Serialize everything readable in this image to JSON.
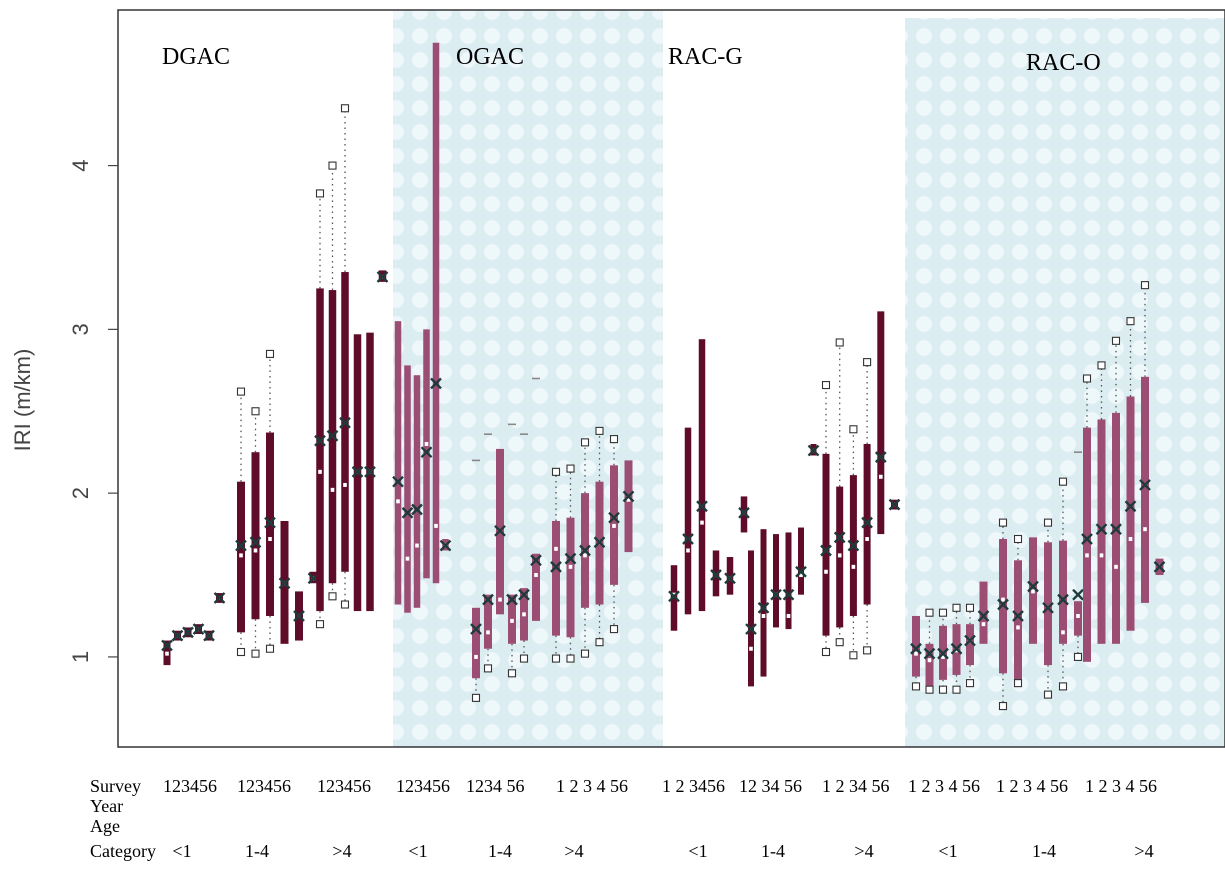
{
  "chart_data": {
    "type": "box",
    "ylabel": "IRI (m/km)",
    "y_ticks": [
      1,
      2,
      3,
      4
    ],
    "ylim": [
      0.45,
      4.95
    ],
    "groups": [
      {
        "name": "DGAC",
        "shaded": false
      },
      {
        "name": "OGAC",
        "shaded": true
      },
      {
        "name": "RAC-G",
        "shaded": false
      },
      {
        "name": "RAC-O",
        "shaded": true
      }
    ],
    "colors": {
      "dark": "#5e0c2a",
      "light": "#9b4d74",
      "shade": "#dcedf2",
      "mean_mark": "#1f3a3a"
    },
    "row_labels": {
      "survey": "Survey",
      "year": "Year",
      "age": "Age",
      "category": "Category"
    },
    "survey_labels": [
      "123456",
      "123456",
      "123456",
      "123456",
      "1234 56",
      "1 2 3 4 56",
      "1 2 3456",
      "12 34 56",
      "1 2 34 56",
      "1 2 3 4 56",
      "1  2 3  4 56",
      "1 2 3 4 56"
    ],
    "age_category_labels": [
      "<1",
      "1-4",
      ">4",
      "<1",
      "1-4",
      ">4",
      "<1",
      "1-4",
      ">4",
      "<1",
      "1-4",
      ">4"
    ],
    "boxes": [
      {
        "q1": 0.95,
        "q3": 1.1,
        "med": 1.02,
        "mean": 1.07,
        "dark": true
      },
      {
        "q1": 1.1,
        "q3": 1.16,
        "med": 1.13,
        "mean": 1.13,
        "dark": true
      },
      {
        "q1": 1.12,
        "q3": 1.18,
        "med": 1.15,
        "mean": 1.15,
        "dark": true
      },
      {
        "q1": 1.14,
        "q3": 1.2,
        "med": 1.17,
        "mean": 1.17,
        "dark": true
      },
      {
        "q1": 1.1,
        "q3": 1.16,
        "med": 1.13,
        "mean": 1.13,
        "dark": true
      },
      {
        "q1": 1.33,
        "q3": 1.39,
        "med": 1.36,
        "mean": 1.36,
        "dark": true
      },
      {
        "q1": 1.15,
        "q3": 2.07,
        "med": 1.62,
        "mean": 1.68,
        "lo": 1.03,
        "hi": 2.62,
        "dark": true
      },
      {
        "q1": 1.23,
        "q3": 2.25,
        "med": 1.65,
        "mean": 1.7,
        "lo": 1.02,
        "hi": 2.5,
        "dark": true
      },
      {
        "q1": 1.25,
        "q3": 2.37,
        "med": 1.72,
        "mean": 1.82,
        "lo": 1.05,
        "hi": 2.85,
        "dark": true
      },
      {
        "q1": 1.08,
        "q3": 1.83,
        "med": 1.45,
        "mean": 1.45,
        "dark": true
      },
      {
        "q1": 1.1,
        "q3": 1.4,
        "med": 1.25,
        "mean": 1.25,
        "dark": true
      },
      {
        "q1": 1.45,
        "q3": 1.52,
        "med": 1.48,
        "mean": 1.48,
        "dark": true
      },
      {
        "q1": 1.28,
        "q3": 3.25,
        "med": 2.13,
        "mean": 2.32,
        "lo": 1.2,
        "hi": 3.83,
        "dark": true
      },
      {
        "q1": 1.45,
        "q3": 3.24,
        "med": 2.02,
        "mean": 2.35,
        "lo": 1.37,
        "hi": 4.0,
        "dark": true
      },
      {
        "q1": 1.52,
        "q3": 3.35,
        "med": 2.05,
        "mean": 2.43,
        "lo": 1.32,
        "hi": 4.35,
        "dark": true
      },
      {
        "q1": 1.28,
        "q3": 2.97,
        "med": 2.13,
        "mean": 2.13,
        "dark": true
      },
      {
        "q1": 1.28,
        "q3": 2.98,
        "med": 2.13,
        "mean": 2.13,
        "dark": true
      },
      {
        "q1": 3.29,
        "q3": 3.36,
        "med": 3.32,
        "mean": 3.32,
        "dark": true
      },
      {
        "q1": 1.32,
        "q3": 3.05,
        "med": 1.95,
        "mean": 2.07,
        "dark": false
      },
      {
        "q1": 1.27,
        "q3": 2.78,
        "med": 1.6,
        "mean": 1.88,
        "dark": false
      },
      {
        "q1": 1.3,
        "q3": 2.72,
        "med": 1.68,
        "mean": 1.9,
        "dark": false
      },
      {
        "q1": 1.48,
        "q3": 3.0,
        "med": 2.3,
        "mean": 2.25,
        "dark": false
      },
      {
        "q1": 1.45,
        "q3": 4.75,
        "med": 1.8,
        "mean": 2.67,
        "dark": false
      },
      {
        "q1": 1.65,
        "q3": 1.72,
        "med": 1.68,
        "mean": 1.68,
        "dark": false
      },
      {
        "q1": 0.87,
        "q3": 1.3,
        "med": 1.0,
        "mean": 1.17,
        "lo": 0.75,
        "extra": 2.2,
        "dark": false
      },
      {
        "q1": 1.05,
        "q3": 1.38,
        "med": 1.15,
        "mean": 1.35,
        "lo": 0.93,
        "extra": 2.36,
        "dark": false
      },
      {
        "q1": 1.26,
        "q3": 2.27,
        "med": 1.35,
        "mean": 1.77,
        "dark": false
      },
      {
        "q1": 1.08,
        "q3": 1.38,
        "med": 1.22,
        "mean": 1.35,
        "lo": 0.9,
        "extra": 2.42,
        "dark": false
      },
      {
        "q1": 1.1,
        "q3": 1.42,
        "med": 1.26,
        "mean": 1.38,
        "lo": 0.99,
        "extra": 2.36,
        "dark": false
      },
      {
        "q1": 1.22,
        "q3": 1.63,
        "med": 1.5,
        "mean": 1.59,
        "extra": 2.7,
        "dark": false
      },
      {
        "q1": 1.13,
        "q3": 1.83,
        "med": 1.66,
        "mean": 1.55,
        "lo": 0.99,
        "hi": 2.13,
        "dark": false
      },
      {
        "q1": 1.12,
        "q3": 1.85,
        "med": 1.55,
        "mean": 1.6,
        "lo": 0.99,
        "hi": 2.15,
        "dark": false
      },
      {
        "q1": 1.3,
        "q3": 2.0,
        "med": 1.62,
        "mean": 1.65,
        "lo": 1.02,
        "hi": 2.31,
        "dark": false
      },
      {
        "q1": 1.32,
        "q3": 2.07,
        "med": 1.7,
        "mean": 1.7,
        "lo": 1.09,
        "hi": 2.38,
        "dark": false
      },
      {
        "q1": 1.44,
        "q3": 2.17,
        "med": 1.8,
        "mean": 1.85,
        "lo": 1.17,
        "hi": 2.33,
        "dark": false
      },
      {
        "q1": 1.64,
        "q3": 2.2,
        "med": 1.96,
        "mean": 1.98,
        "dark": false
      },
      {
        "q1": 1.16,
        "q3": 1.56,
        "med": 1.38,
        "mean": 1.37,
        "dark": true
      },
      {
        "q1": 1.26,
        "q3": 2.4,
        "med": 1.65,
        "mean": 1.72,
        "dark": true
      },
      {
        "q1": 1.28,
        "q3": 2.94,
        "med": 1.82,
        "mean": 1.92,
        "dark": true
      },
      {
        "q1": 1.37,
        "q3": 1.65,
        "med": 1.5,
        "mean": 1.5,
        "dark": true
      },
      {
        "q1": 1.38,
        "q3": 1.61,
        "med": 1.48,
        "mean": 1.48,
        "dark": true
      },
      {
        "q1": 1.76,
        "q3": 1.98,
        "med": 1.88,
        "mean": 1.88,
        "dark": true
      },
      {
        "q1": 0.82,
        "q3": 1.65,
        "med": 1.05,
        "mean": 1.17,
        "dark": true
      },
      {
        "q1": 0.88,
        "q3": 1.78,
        "med": 1.25,
        "mean": 1.3,
        "dark": true
      },
      {
        "q1": 1.18,
        "q3": 1.75,
        "med": 1.38,
        "mean": 1.38,
        "dark": true
      },
      {
        "q1": 1.17,
        "q3": 1.76,
        "med": 1.25,
        "mean": 1.38,
        "dark": true
      },
      {
        "q1": 1.38,
        "q3": 1.79,
        "med": 1.5,
        "mean": 1.52,
        "dark": true
      },
      {
        "q1": 2.23,
        "q3": 2.3,
        "med": 2.26,
        "mean": 2.26,
        "dark": true
      },
      {
        "q1": 1.13,
        "q3": 2.24,
        "med": 1.52,
        "mean": 1.65,
        "lo": 1.03,
        "hi": 2.66,
        "dark": true
      },
      {
        "q1": 1.18,
        "q3": 2.04,
        "med": 1.62,
        "mean": 1.73,
        "lo": 1.09,
        "hi": 2.92,
        "dark": true
      },
      {
        "q1": 1.25,
        "q3": 2.11,
        "med": 1.55,
        "mean": 1.68,
        "lo": 1.01,
        "hi": 2.39,
        "dark": true
      },
      {
        "q1": 1.32,
        "q3": 2.3,
        "med": 1.72,
        "mean": 1.82,
        "lo": 1.04,
        "hi": 2.8,
        "dark": true
      },
      {
        "q1": 1.75,
        "q3": 3.11,
        "med": 2.1,
        "mean": 2.22,
        "dark": true
      },
      {
        "q1": 1.9,
        "q3": 1.96,
        "med": 1.93,
        "mean": 1.93,
        "dark": true
      },
      {
        "q1": 0.88,
        "q3": 1.25,
        "med": 1.02,
        "mean": 1.05,
        "lo": 0.82,
        "dark": false
      },
      {
        "q1": 0.82,
        "q3": 1.08,
        "med": 0.98,
        "mean": 1.02,
        "lo": 0.8,
        "hi": 1.27,
        "dark": false
      },
      {
        "q1": 0.86,
        "q3": 1.19,
        "med": 1.0,
        "mean": 1.02,
        "lo": 0.8,
        "hi": 1.27,
        "dark": false
      },
      {
        "q1": 0.89,
        "q3": 1.2,
        "med": 1.04,
        "mean": 1.05,
        "lo": 0.8,
        "hi": 1.3,
        "dark": false
      },
      {
        "q1": 0.95,
        "q3": 1.2,
        "med": 1.1,
        "mean": 1.1,
        "lo": 0.84,
        "hi": 1.3,
        "dark": false
      },
      {
        "q1": 1.08,
        "q3": 1.46,
        "med": 1.2,
        "mean": 1.25,
        "dark": false
      },
      {
        "q1": 0.9,
        "q3": 1.72,
        "med": 1.35,
        "mean": 1.32,
        "lo": 0.7,
        "hi": 1.82,
        "dark": false
      },
      {
        "q1": 0.84,
        "q3": 1.59,
        "med": 1.18,
        "mean": 1.25,
        "lo": 0.84,
        "hi": 1.72,
        "dark": false
      },
      {
        "q1": 1.08,
        "q3": 1.73,
        "med": 1.4,
        "mean": 1.43,
        "dark": false
      },
      {
        "q1": 0.95,
        "q3": 1.7,
        "med": 1.3,
        "mean": 1.3,
        "lo": 0.77,
        "hi": 1.82,
        "dark": false
      },
      {
        "q1": 1.08,
        "q3": 1.71,
        "med": 1.15,
        "mean": 1.35,
        "lo": 0.82,
        "hi": 2.07,
        "dark": false
      },
      {
        "q1": 1.13,
        "q3": 1.34,
        "med": 1.25,
        "mean": 1.38,
        "lo": 1.0,
        "extra": 2.25,
        "dark": false
      },
      {
        "q1": 0.97,
        "q3": 2.4,
        "med": 1.62,
        "mean": 1.72,
        "hi": 2.7,
        "dark": false
      },
      {
        "q1": 1.08,
        "q3": 2.45,
        "med": 1.62,
        "mean": 1.78,
        "hi": 2.78,
        "dark": false
      },
      {
        "q1": 1.08,
        "q3": 2.49,
        "med": 1.55,
        "mean": 1.78,
        "hi": 2.93,
        "dark": false
      },
      {
        "q1": 1.16,
        "q3": 2.59,
        "med": 1.72,
        "mean": 1.92,
        "hi": 3.05,
        "dark": false
      },
      {
        "q1": 1.33,
        "q3": 2.71,
        "med": 1.78,
        "mean": 2.05,
        "hi": 3.27,
        "dark": false
      },
      {
        "q1": 1.5,
        "q3": 1.6,
        "med": 1.55,
        "mean": 1.55,
        "dark": false
      }
    ]
  }
}
